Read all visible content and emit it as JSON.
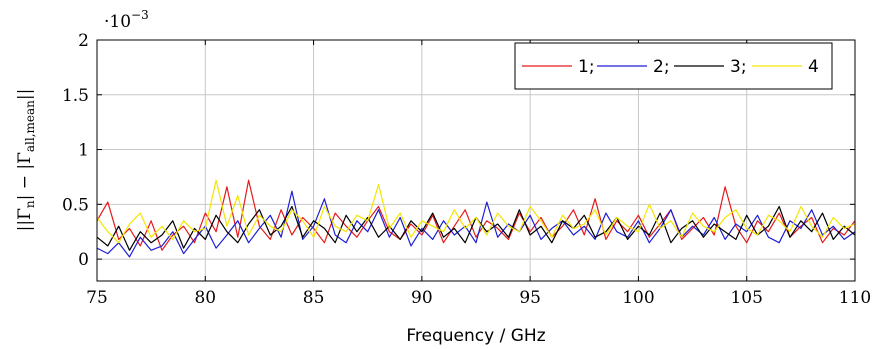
{
  "chart_data": {
    "type": "line",
    "title": "",
    "xlabel": "Frequency / GHz",
    "ylabel": "||Γn| − |Γall,mean||",
    "ylabel_parts": {
      "outer_left": "||Γ",
      "sub1": "n",
      "middle": "| − |Γ",
      "sub2": "all,mean",
      "outer_right": "||"
    },
    "y_scale_label": {
      "base": "·10",
      "exponent": "−3"
    },
    "xlim": [
      75,
      110
    ],
    "ylim": [
      -0.2,
      2.0
    ],
    "x_ticks": [
      75,
      80,
      85,
      90,
      95,
      100,
      105,
      110
    ],
    "x_tick_labels": [
      "75",
      "80",
      "85",
      "90",
      "95",
      "100",
      "105",
      "110"
    ],
    "y_ticks": [
      0,
      0.5,
      1,
      1.5,
      2
    ],
    "y_tick_labels": [
      "0",
      "0.5",
      "1",
      "1.5",
      "2"
    ],
    "grid": true,
    "legend_position": "top-right",
    "legend_separator": ";",
    "series": [
      {
        "name": "1",
        "color": "#e41a1c",
        "x": [
          75,
          75.5,
          76,
          76.5,
          77,
          77.5,
          78,
          78.5,
          79,
          79.5,
          80,
          80.5,
          81,
          81.5,
          82,
          82.5,
          83,
          83.5,
          84,
          84.5,
          85,
          85.5,
          86,
          86.5,
          87,
          87.5,
          88,
          88.5,
          89,
          89.5,
          90,
          90.5,
          91,
          91.5,
          92,
          92.5,
          93,
          93.5,
          94,
          94.5,
          95,
          95.5,
          96,
          96.5,
          97,
          97.5,
          98,
          98.5,
          99,
          99.5,
          100,
          100.5,
          101,
          101.5,
          102,
          102.5,
          103,
          103.5,
          104,
          104.5,
          105,
          105.5,
          106,
          106.5,
          107,
          107.5,
          108,
          108.5,
          109,
          109.5,
          110
        ],
        "values": [
          0.35,
          0.52,
          0.18,
          0.28,
          0.12,
          0.35,
          0.08,
          0.22,
          0.3,
          0.15,
          0.42,
          0.25,
          0.66,
          0.2,
          0.72,
          0.3,
          0.18,
          0.45,
          0.22,
          0.38,
          0.28,
          0.15,
          0.42,
          0.3,
          0.2,
          0.35,
          0.48,
          0.25,
          0.18,
          0.32,
          0.22,
          0.4,
          0.15,
          0.3,
          0.45,
          0.2,
          0.35,
          0.28,
          0.18,
          0.42,
          0.25,
          0.38,
          0.2,
          0.3,
          0.45,
          0.22,
          0.55,
          0.18,
          0.35,
          0.25,
          0.4,
          0.2,
          0.32,
          0.45,
          0.18,
          0.28,
          0.38,
          0.22,
          0.66,
          0.3,
          0.15,
          0.35,
          0.25,
          0.42,
          0.2,
          0.3,
          0.38,
          0.15,
          0.28,
          0.22,
          0.35
        ]
      },
      {
        "name": "2",
        "color": "#1f1fd6",
        "x": [
          75,
          75.5,
          76,
          76.5,
          77,
          77.5,
          78,
          78.5,
          79,
          79.5,
          80,
          80.5,
          81,
          81.5,
          82,
          82.5,
          83,
          83.5,
          84,
          84.5,
          85,
          85.5,
          86,
          86.5,
          87,
          87.5,
          88,
          88.5,
          89,
          89.5,
          90,
          90.5,
          91,
          91.5,
          92,
          92.5,
          93,
          93.5,
          94,
          94.5,
          95,
          95.5,
          96,
          96.5,
          97,
          97.5,
          98,
          98.5,
          99,
          99.5,
          100,
          100.5,
          101,
          101.5,
          102,
          102.5,
          103,
          103.5,
          104,
          104.5,
          105,
          105.5,
          106,
          106.5,
          107,
          107.5,
          108,
          108.5,
          109,
          109.5,
          110
        ],
        "values": [
          0.1,
          0.05,
          0.15,
          0.02,
          0.2,
          0.08,
          0.12,
          0.25,
          0.05,
          0.18,
          0.3,
          0.1,
          0.22,
          0.35,
          0.15,
          0.28,
          0.4,
          0.2,
          0.62,
          0.18,
          0.3,
          0.55,
          0.22,
          0.15,
          0.35,
          0.25,
          0.45,
          0.2,
          0.38,
          0.12,
          0.28,
          0.18,
          0.35,
          0.22,
          0.3,
          0.15,
          0.52,
          0.2,
          0.32,
          0.25,
          0.4,
          0.18,
          0.28,
          0.35,
          0.22,
          0.3,
          0.18,
          0.42,
          0.25,
          0.2,
          0.35,
          0.15,
          0.28,
          0.45,
          0.2,
          0.3,
          0.22,
          0.38,
          0.18,
          0.32,
          0.25,
          0.4,
          0.2,
          0.15,
          0.35,
          0.28,
          0.45,
          0.22,
          0.3,
          0.18,
          0.25
        ]
      },
      {
        "name": "3",
        "color": "#000000",
        "x": [
          75,
          75.5,
          76,
          76.5,
          77,
          77.5,
          78,
          78.5,
          79,
          79.5,
          80,
          80.5,
          81,
          81.5,
          82,
          82.5,
          83,
          83.5,
          84,
          84.5,
          85,
          85.5,
          86,
          86.5,
          87,
          87.5,
          88,
          88.5,
          89,
          89.5,
          90,
          90.5,
          91,
          91.5,
          92,
          92.5,
          93,
          93.5,
          94,
          94.5,
          95,
          95.5,
          96,
          96.5,
          97,
          97.5,
          98,
          98.5,
          99,
          99.5,
          100,
          100.5,
          101,
          101.5,
          102,
          102.5,
          103,
          103.5,
          104,
          104.5,
          105,
          105.5,
          106,
          106.5,
          107,
          107.5,
          108,
          108.5,
          109,
          109.5,
          110
        ],
        "values": [
          0.2,
          0.12,
          0.3,
          0.08,
          0.25,
          0.15,
          0.22,
          0.35,
          0.1,
          0.28,
          0.18,
          0.4,
          0.25,
          0.15,
          0.32,
          0.45,
          0.22,
          0.3,
          0.48,
          0.2,
          0.35,
          0.28,
          0.15,
          0.4,
          0.25,
          0.38,
          0.2,
          0.3,
          0.18,
          0.35,
          0.25,
          0.42,
          0.2,
          0.28,
          0.15,
          0.38,
          0.25,
          0.32,
          0.2,
          0.45,
          0.22,
          0.3,
          0.15,
          0.35,
          0.28,
          0.4,
          0.2,
          0.25,
          0.38,
          0.18,
          0.3,
          0.22,
          0.42,
          0.15,
          0.28,
          0.35,
          0.2,
          0.32,
          0.25,
          0.18,
          0.4,
          0.22,
          0.3,
          0.48,
          0.2,
          0.35,
          0.25,
          0.42,
          0.18,
          0.3,
          0.22
        ]
      },
      {
        "name": "4",
        "color": "#f2e600",
        "x": [
          75,
          75.5,
          76,
          76.5,
          77,
          77.5,
          78,
          78.5,
          79,
          79.5,
          80,
          80.5,
          81,
          81.5,
          82,
          82.5,
          83,
          83.5,
          84,
          84.5,
          85,
          85.5,
          86,
          86.5,
          87,
          87.5,
          88,
          88.5,
          89,
          89.5,
          90,
          90.5,
          91,
          91.5,
          92,
          92.5,
          93,
          93.5,
          94,
          94.5,
          95,
          95.5,
          96,
          96.5,
          97,
          97.5,
          98,
          98.5,
          99,
          99.5,
          100,
          100.5,
          101,
          101.5,
          102,
          102.5,
          103,
          103.5,
          104,
          104.5,
          105,
          105.5,
          106,
          106.5,
          107,
          107.5,
          108,
          108.5,
          109,
          109.5,
          110
        ],
        "values": [
          0.38,
          0.25,
          0.15,
          0.32,
          0.42,
          0.2,
          0.3,
          0.18,
          0.35,
          0.25,
          0.28,
          0.72,
          0.3,
          0.58,
          0.22,
          0.4,
          0.3,
          0.25,
          0.45,
          0.35,
          0.2,
          0.48,
          0.3,
          0.25,
          0.4,
          0.35,
          0.68,
          0.28,
          0.42,
          0.2,
          0.35,
          0.3,
          0.25,
          0.45,
          0.28,
          0.38,
          0.22,
          0.42,
          0.3,
          0.25,
          0.48,
          0.35,
          0.2,
          0.4,
          0.28,
          0.32,
          0.45,
          0.22,
          0.38,
          0.3,
          0.25,
          0.5,
          0.28,
          0.35,
          0.2,
          0.42,
          0.3,
          0.25,
          0.38,
          0.45,
          0.28,
          0.22,
          0.4,
          0.35,
          0.25,
          0.48,
          0.3,
          0.2,
          0.38,
          0.28,
          0.32
        ]
      }
    ]
  }
}
